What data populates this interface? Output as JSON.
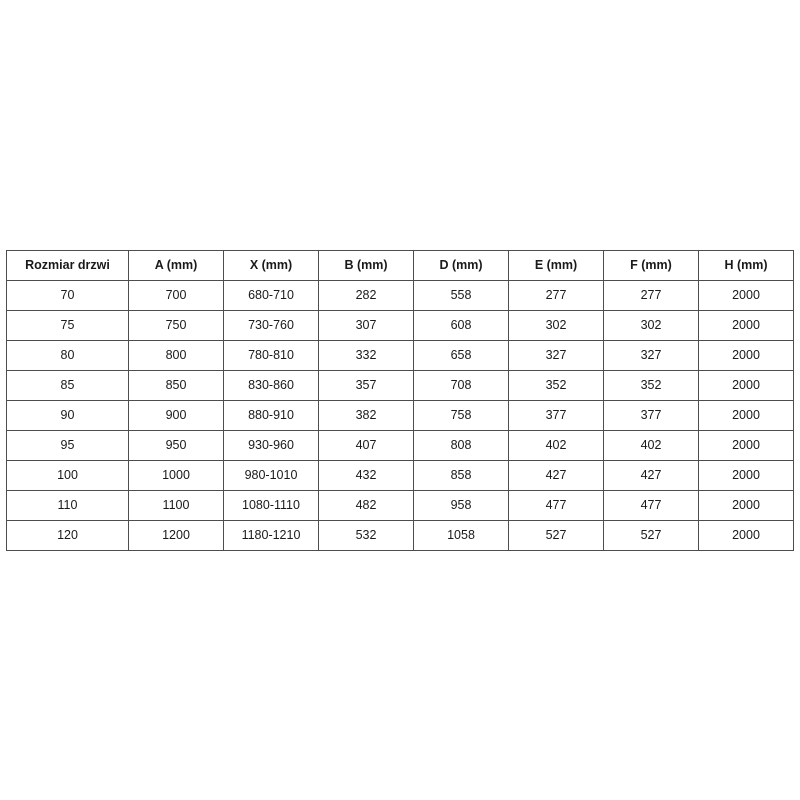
{
  "colors": {
    "background": "#ffffff",
    "border": "#4d4d4d",
    "text": "#1a1a1a"
  },
  "table": {
    "columns": [
      "Rozmiar drzwi",
      "A (mm)",
      "X (mm)",
      "B (mm)",
      "D (mm)",
      "E (mm)",
      "F (mm)",
      "H (mm)"
    ],
    "rows": [
      [
        "70",
        "700",
        "680-710",
        "282",
        "558",
        "277",
        "277",
        "2000"
      ],
      [
        "75",
        "750",
        "730-760",
        "307",
        "608",
        "302",
        "302",
        "2000"
      ],
      [
        "80",
        "800",
        "780-810",
        "332",
        "658",
        "327",
        "327",
        "2000"
      ],
      [
        "85",
        "850",
        "830-860",
        "357",
        "708",
        "352",
        "352",
        "2000"
      ],
      [
        "90",
        "900",
        "880-910",
        "382",
        "758",
        "377",
        "377",
        "2000"
      ],
      [
        "95",
        "950",
        "930-960",
        "407",
        "808",
        "402",
        "402",
        "2000"
      ],
      [
        "100",
        "1000",
        "980-1010",
        "432",
        "858",
        "427",
        "427",
        "2000"
      ],
      [
        "110",
        "1100",
        "1080-1110",
        "482",
        "958",
        "477",
        "477",
        "2000"
      ],
      [
        "120",
        "1200",
        "1180-1210",
        "532",
        "1058",
        "527",
        "527",
        "2000"
      ]
    ]
  },
  "chart_data": {
    "type": "table",
    "title": "",
    "columns": [
      "Rozmiar drzwi",
      "A (mm)",
      "X (mm)",
      "B (mm)",
      "D (mm)",
      "E (mm)",
      "F (mm)",
      "H (mm)"
    ],
    "rows": [
      [
        "70",
        "700",
        "680-710",
        "282",
        "558",
        "277",
        "277",
        "2000"
      ],
      [
        "75",
        "750",
        "730-760",
        "307",
        "608",
        "302",
        "302",
        "2000"
      ],
      [
        "80",
        "800",
        "780-810",
        "332",
        "658",
        "327",
        "327",
        "2000"
      ],
      [
        "85",
        "850",
        "830-860",
        "357",
        "708",
        "352",
        "352",
        "2000"
      ],
      [
        "90",
        "900",
        "880-910",
        "382",
        "758",
        "377",
        "377",
        "2000"
      ],
      [
        "95",
        "950",
        "930-960",
        "407",
        "808",
        "402",
        "402",
        "2000"
      ],
      [
        "100",
        "1000",
        "980-1010",
        "432",
        "858",
        "427",
        "427",
        "2000"
      ],
      [
        "110",
        "1100",
        "1080-1110",
        "482",
        "958",
        "477",
        "477",
        "2000"
      ],
      [
        "120",
        "1200",
        "1180-1210",
        "532",
        "1058",
        "527",
        "527",
        "2000"
      ]
    ]
  }
}
